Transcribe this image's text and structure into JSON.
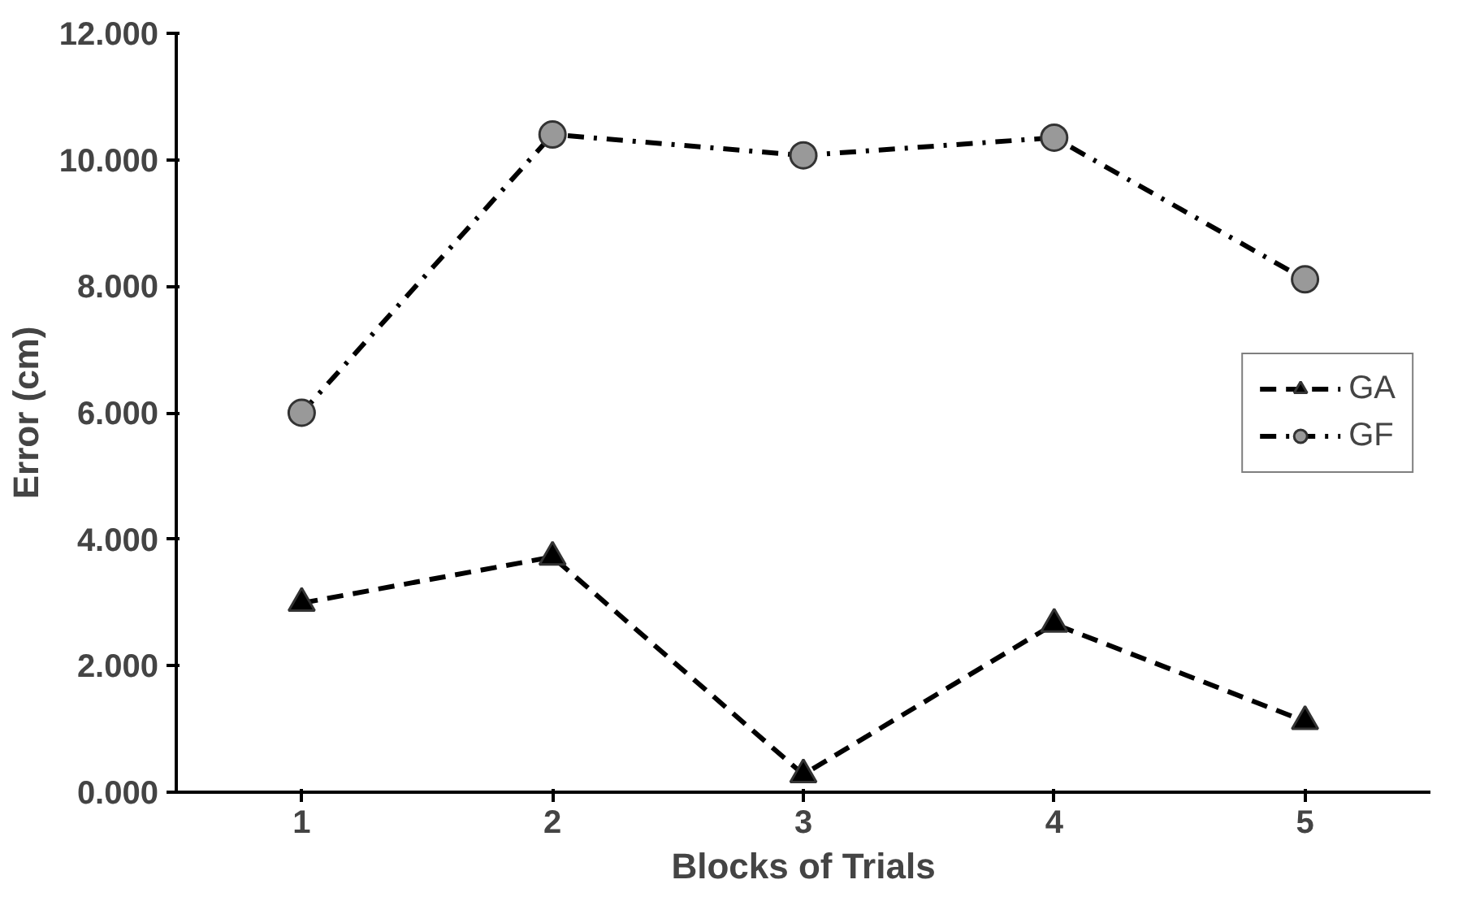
{
  "chart_data": {
    "type": "line",
    "xlabel": "Blocks of Trials",
    "ylabel": "Error (cm)",
    "x": [
      1,
      2,
      3,
      4,
      5
    ],
    "series": [
      {
        "name": "GA",
        "color": "#000000",
        "marker": "triangle",
        "line_style": "dashed",
        "values": [
          2.99,
          3.72,
          0.28,
          2.66,
          1.12
        ]
      },
      {
        "name": "GF",
        "color": "#999999",
        "marker": "circle",
        "line_style": "dashdot",
        "values": [
          6.0,
          10.4,
          10.07,
          10.35,
          8.11
        ]
      }
    ],
    "xlim": [
      0.5,
      5.5
    ],
    "xticks": [
      1,
      2,
      3,
      4,
      5
    ],
    "ylim": [
      0,
      12
    ],
    "yticks": [
      {
        "value": 0,
        "label": "0.000"
      },
      {
        "value": 2,
        "label": "2.000"
      },
      {
        "value": 4,
        "label": "4.000"
      },
      {
        "value": 6,
        "label": "6.000"
      },
      {
        "value": 8,
        "label": "8.000"
      },
      {
        "value": 10,
        "label": "10.000"
      },
      {
        "value": 12,
        "label": "12.000"
      }
    ],
    "legend": "right",
    "grid": false
  }
}
